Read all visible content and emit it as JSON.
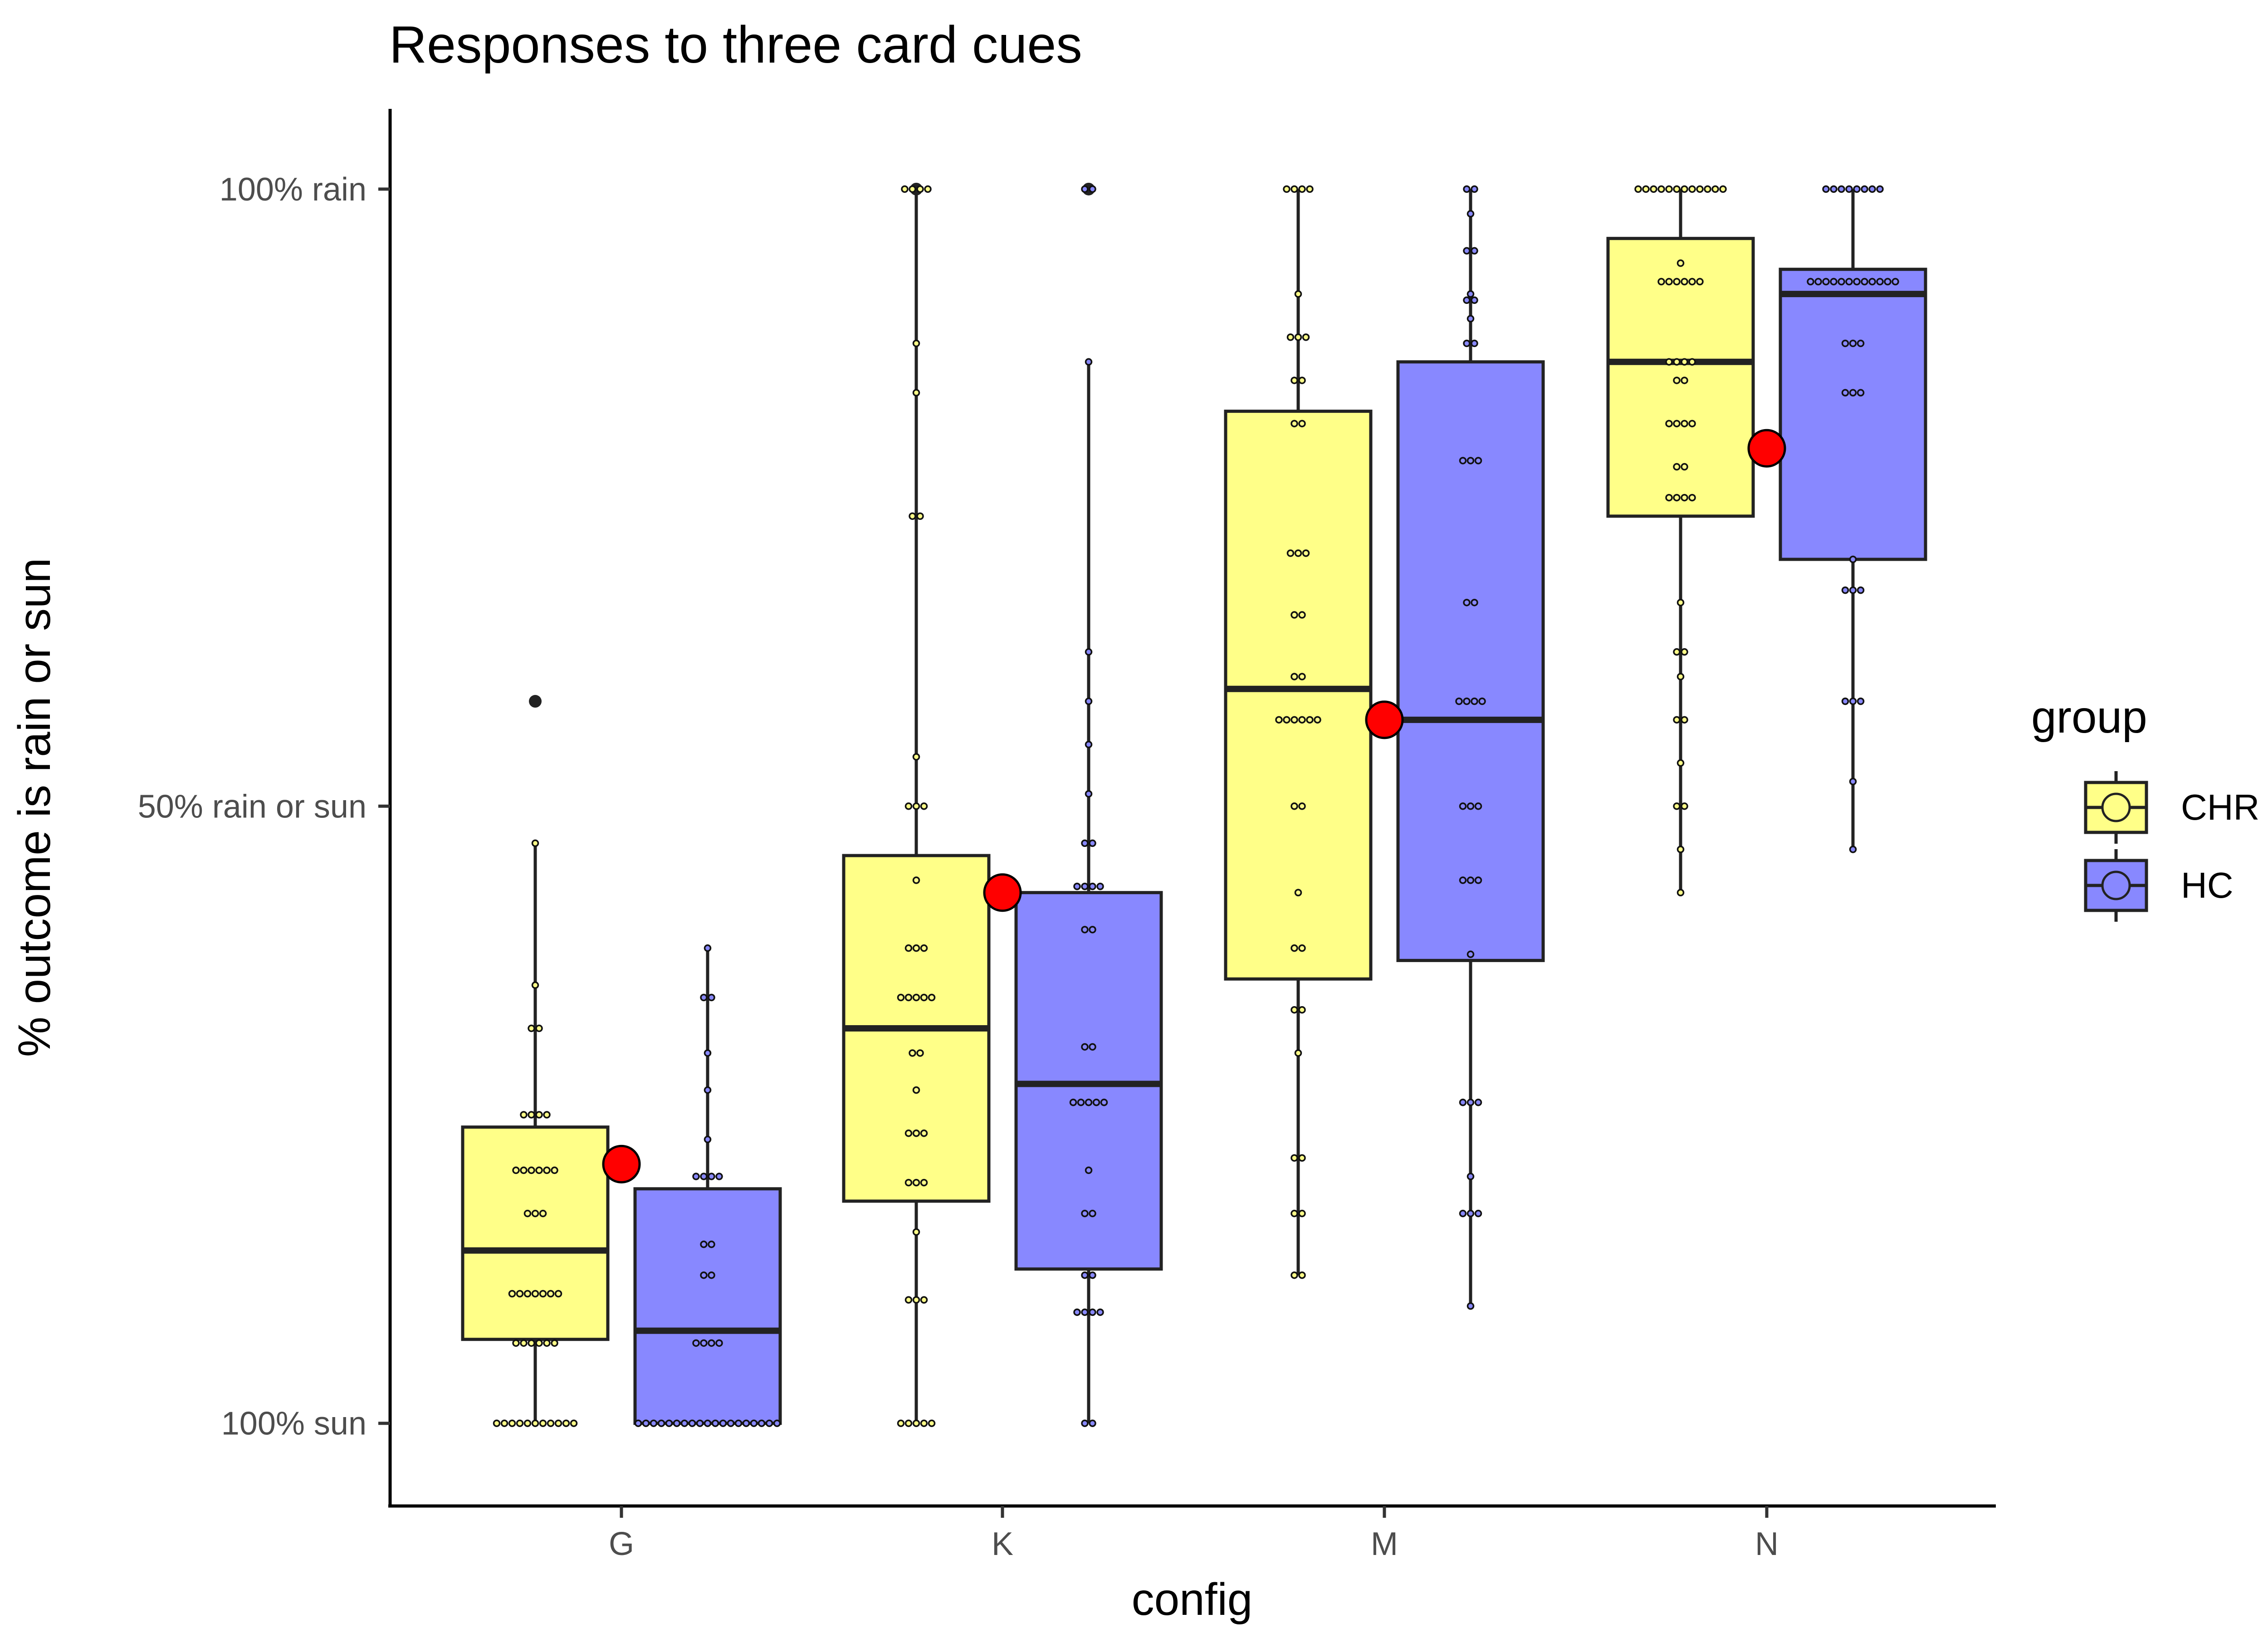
{
  "chart_data": {
    "type": "box",
    "title": "Responses to three card cues",
    "xlabel": "config",
    "ylabel": "% outcome is rain or sun",
    "categories": [
      "G",
      "K",
      "M",
      "N"
    ],
    "y_ticks": [
      {
        "value": 0,
        "label": "100% sun"
      },
      {
        "value": 50,
        "label": "50% rain or sun"
      },
      {
        "value": 100,
        "label": "100% rain"
      }
    ],
    "ylim": [
      -6.7,
      106.5
    ],
    "legend": {
      "title": "group",
      "position": "right"
    },
    "grid": false,
    "series": [
      {
        "name": "CHR",
        "color": "#FFFF88",
        "boxes": [
          {
            "category": "G",
            "q1": 6.8,
            "median": 14.0,
            "q3": 24.0,
            "whisker_low": 0,
            "whisker_high": 47.0,
            "outliers": [
              58.5
            ],
            "points": [
              0,
              0,
              0,
              0,
              0,
              0,
              0,
              0,
              0,
              0,
              0,
              6.5,
              6.5,
              6.5,
              6.5,
              6.5,
              6.5,
              10.5,
              10.5,
              10.5,
              10.5,
              10.5,
              10.5,
              10.5,
              17.0,
              17.0,
              17.0,
              20.5,
              20.5,
              20.5,
              20.5,
              20.5,
              20.5,
              25.0,
              25.0,
              25.0,
              25.0,
              32.0,
              32.0,
              35.5,
              47.0
            ]
          },
          {
            "category": "K",
            "q1": 18.0,
            "median": 32.0,
            "q3": 46.0,
            "whisker_low": 0,
            "whisker_high": 100,
            "outliers": [
              100
            ],
            "points": [
              0,
              0,
              0,
              0,
              0,
              10.0,
              10.0,
              10.0,
              15.5,
              19.5,
              19.5,
              19.5,
              23.5,
              23.5,
              23.5,
              27.0,
              30.0,
              30.0,
              34.5,
              34.5,
              34.5,
              34.5,
              34.5,
              38.5,
              38.5,
              38.5,
              44.0,
              50,
              50,
              50,
              54.0,
              73.5,
              73.5,
              83.5,
              87.5,
              100,
              100,
              100,
              100
            ]
          },
          {
            "category": "M",
            "q1": 36.0,
            "median": 59.5,
            "q3": 82.0,
            "whisker_low": 12.0,
            "whisker_high": 100,
            "points": [
              12.0,
              12.0,
              17.0,
              17.0,
              21.5,
              21.5,
              30.0,
              33.5,
              33.5,
              38.5,
              38.5,
              43.0,
              50,
              50,
              57.0,
              57.0,
              57.0,
              57.0,
              57.0,
              57.0,
              60.5,
              60.5,
              65.5,
              65.5,
              70.5,
              70.5,
              70.5,
              81.0,
              81.0,
              84.5,
              84.5,
              88.0,
              88.0,
              88.0,
              91.5,
              100,
              100,
              100,
              100
            ]
          },
          {
            "category": "N",
            "q1": 73.5,
            "median": 86.0,
            "q3": 96.0,
            "whisker_low": 43.0,
            "whisker_high": 100,
            "points": [
              43.0,
              46.5,
              50,
              50,
              53.5,
              57.0,
              57.0,
              60.5,
              62.5,
              62.5,
              66.5,
              75.0,
              75.0,
              75.0,
              75.0,
              77.5,
              77.5,
              81.0,
              81.0,
              81.0,
              81.0,
              84.5,
              84.5,
              86.0,
              86.0,
              86.0,
              86.0,
              92.5,
              92.5,
              92.5,
              92.5,
              92.5,
              92.5,
              94.0,
              100,
              100,
              100,
              100,
              100,
              100,
              100,
              100,
              100,
              100,
              100,
              100
            ]
          }
        ]
      },
      {
        "name": "HC",
        "color": "#8888FF",
        "boxes": [
          {
            "category": "G",
            "q1": 0,
            "median": 7.5,
            "q3": 19.0,
            "whisker_low": 0,
            "whisker_high": 38.5,
            "points": [
              0,
              0,
              0,
              0,
              0,
              0,
              0,
              0,
              0,
              0,
              0,
              0,
              0,
              0,
              0,
              0,
              0,
              0,
              0,
              6.5,
              6.5,
              6.5,
              6.5,
              12.0,
              12.0,
              14.5,
              14.5,
              20.0,
              20.0,
              20.0,
              20.0,
              23.0,
              27.0,
              30.0,
              34.5,
              34.5,
              38.5
            ]
          },
          {
            "category": "K",
            "q1": 12.5,
            "median": 27.5,
            "q3": 43.0,
            "whisker_low": 0,
            "whisker_high": 86.0,
            "outliers": [
              100
            ],
            "points": [
              0,
              0,
              9.0,
              9.0,
              9.0,
              9.0,
              12.0,
              12.0,
              17.0,
              17.0,
              20.5,
              26.0,
              26.0,
              26.0,
              26.0,
              26.0,
              30.5,
              30.5,
              40.0,
              40.0,
              43.5,
              43.5,
              43.5,
              43.5,
              47.0,
              47.0,
              51.0,
              55.0,
              58.5,
              62.5,
              86.0,
              100,
              100
            ]
          },
          {
            "category": "M",
            "q1": 37.5,
            "median": 57.0,
            "q3": 86.0,
            "whisker_low": 9.5,
            "whisker_high": 100,
            "points": [
              9.5,
              17.0,
              17.0,
              17.0,
              20.0,
              26.0,
              26.0,
              26.0,
              38.0,
              44.0,
              44.0,
              44.0,
              50,
              50,
              50,
              58.5,
              58.5,
              58.5,
              58.5,
              66.5,
              66.5,
              78.0,
              78.0,
              78.0,
              87.5,
              87.5,
              89.5,
              91.0,
              91.0,
              91.5,
              95.0,
              95.0,
              98.0,
              100,
              100
            ]
          },
          {
            "category": "N",
            "q1": 70.0,
            "median": 91.5,
            "q3": 93.5,
            "whisker_low": 46.5,
            "whisker_high": 100,
            "points": [
              46.5,
              52.0,
              58.5,
              58.5,
              58.5,
              67.5,
              67.5,
              67.5,
              70.0,
              83.5,
              83.5,
              83.5,
              87.5,
              87.5,
              87.5,
              92.5,
              92.5,
              92.5,
              92.5,
              92.5,
              92.5,
              92.5,
              92.5,
              92.5,
              92.5,
              92.5,
              92.5,
              100,
              100,
              100,
              100,
              100,
              100,
              100,
              100
            ]
          }
        ]
      },
      {
        "name": "",
        "type": "point",
        "color": "#FF0000",
        "values": [
          21.0,
          43.0,
          57.0,
          79.0
        ]
      }
    ]
  }
}
